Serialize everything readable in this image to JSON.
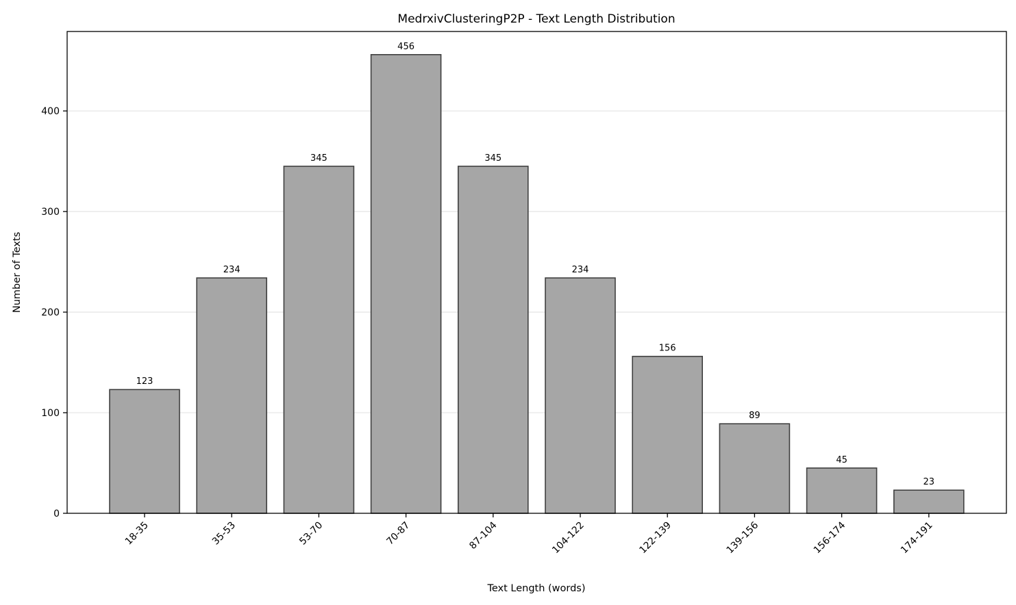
{
  "chart_data": {
    "type": "bar",
    "title": "MedrxivClusteringP2P - Text Length Distribution",
    "xlabel": "Text Length (words)",
    "ylabel": "Number of Texts",
    "categories": [
      "18-35",
      "35-53",
      "53-70",
      "70-87",
      "87-104",
      "104-122",
      "122-139",
      "139-156",
      "156-174",
      "174-191"
    ],
    "values": [
      123,
      234,
      345,
      456,
      345,
      234,
      156,
      89,
      45,
      23
    ],
    "data_labels": [
      "123",
      "234",
      "345",
      "456",
      "345",
      "234",
      "156",
      "89",
      "45",
      "23"
    ],
    "ylim": [
      0,
      479
    ],
    "yticks": [
      0,
      100,
      200,
      300,
      400
    ],
    "ytick_labels": [
      "0",
      "100",
      "200",
      "300",
      "400"
    ],
    "grid": "y",
    "legend": "none",
    "colors": {
      "bar_fill": "#a6a6a6",
      "bar_edge": "#404040",
      "grid": "#e6e6e6",
      "axes": "#000000"
    }
  }
}
